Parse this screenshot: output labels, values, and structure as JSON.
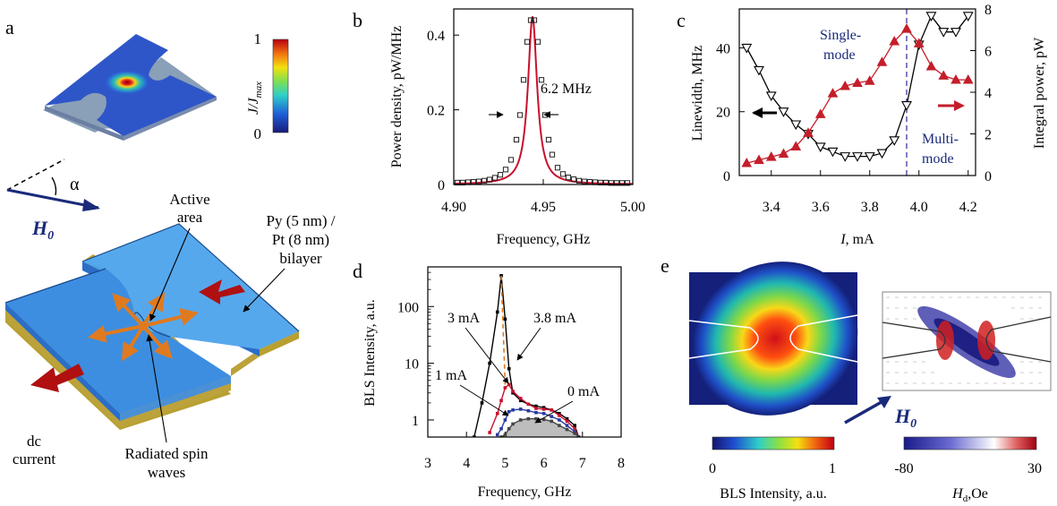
{
  "panels": {
    "a": {
      "letter": "a",
      "colorbar_label": "J/J",
      "colorbar_sub": "max",
      "colorbar_max": "1",
      "colorbar_min": "0",
      "alpha": "α",
      "field_label": "H",
      "field_sub": "0",
      "active_area_1": "Active",
      "active_area_2": "area",
      "py_1": "Py (5 nm) /",
      "py_2": "Pt (8 nm)",
      "py_3": "bilayer",
      "dc_1": "dc",
      "dc_2": "current",
      "rad_1": "Radiated spin",
      "rad_2": "waves"
    },
    "b": {
      "letter": "b",
      "ylabel": "Power density, pW/MHz",
      "xlabel": "Frequency, GHz",
      "annotation": "6.2 MHz"
    },
    "c": {
      "letter": "c",
      "ylabel_left": "Linewidth, MHz",
      "ylabel_right": "Integral power, pW",
      "xlabel_i": "I",
      "xlabel_unit": ", mA",
      "single_1": "Single-",
      "single_2": "mode",
      "multi_1": "Multi-",
      "multi_2": "mode"
    },
    "d": {
      "letter": "d",
      "ylabel": "BLS Intensity, a.u.",
      "xlabel": "Frequency, GHz",
      "label_3ma": "3 mA",
      "label_38ma": "3.8 mA",
      "label_1ma": "1 mA",
      "label_0ma": "0 mA"
    },
    "e": {
      "letter": "e",
      "field_label": "H",
      "field_sub": "0",
      "bls_cb_min": "0",
      "bls_cb_max": "1",
      "bls_cb_label": "BLS Intensity, a.u.",
      "hd_cb_min": "-80",
      "hd_cb_max": "30",
      "hd_label": "H",
      "hd_sub": "d",
      "hd_unit": ",Oe"
    }
  },
  "chart_data": [
    {
      "panel": "b",
      "type": "line",
      "xlabel": "Frequency, GHz",
      "ylabel": "Power density, pW/MHz",
      "xlim": [
        4.9,
        5.0
      ],
      "ylim": [
        0,
        0.47
      ],
      "xticks": [
        "4.90",
        "4.95",
        "5.00"
      ],
      "yticks": [
        "0",
        "0.2",
        "0.4"
      ],
      "center_ghz": 4.944,
      "fwhm_mhz": 6.2,
      "peak": 0.45,
      "x": [
        4.902,
        4.905,
        4.908,
        4.911,
        4.914,
        4.917,
        4.92,
        4.923,
        4.926,
        4.929,
        4.932,
        4.935,
        4.937,
        4.939,
        4.941,
        4.943,
        4.945,
        4.947,
        4.949,
        4.951,
        4.953,
        4.955,
        4.958,
        4.961,
        4.964,
        4.967,
        4.97,
        4.973,
        4.976,
        4.979,
        4.982,
        4.985,
        4.988,
        4.991,
        4.994,
        4.997
      ],
      "values": [
        0.005,
        0.005,
        0.006,
        0.007,
        0.008,
        0.01,
        0.013,
        0.018,
        0.026,
        0.04,
        0.066,
        0.12,
        0.186,
        0.28,
        0.382,
        0.44,
        0.44,
        0.382,
        0.28,
        0.186,
        0.12,
        0.08,
        0.045,
        0.028,
        0.019,
        0.014,
        0.01,
        0.008,
        0.007,
        0.006,
        0.005,
        0.005,
        0.004,
        0.004,
        0.004,
        0.004
      ]
    },
    {
      "panel": "c",
      "type": "line",
      "xlabel": "I, mA",
      "xlim": [
        3.27,
        4.23
      ],
      "xticks": [
        "3.4",
        "3.6",
        "3.8",
        "4.0",
        "4.2"
      ],
      "yleft_ticks": [
        "0",
        "20",
        "40"
      ],
      "yright_ticks": [
        "0",
        "2",
        "4",
        "6",
        "8"
      ],
      "series": [
        {
          "axis": "left",
          "ylim": [
            0,
            52.2
          ],
          "x": [
            3.3,
            3.35,
            3.4,
            3.45,
            3.5,
            3.55,
            3.6,
            3.65,
            3.7,
            3.75,
            3.8,
            3.85,
            3.9,
            3.95,
            4.0,
            4.05,
            4.1,
            4.15,
            4.2
          ],
          "values": [
            40,
            33,
            25,
            20,
            16,
            13,
            9,
            7.5,
            6,
            6,
            6,
            7,
            11,
            22,
            41,
            50,
            45,
            45,
            50
          ]
        },
        {
          "axis": "right",
          "ylim": [
            0,
            8
          ],
          "x": [
            3.3,
            3.35,
            3.4,
            3.45,
            3.5,
            3.55,
            3.6,
            3.65,
            3.7,
            3.75,
            3.8,
            3.85,
            3.9,
            3.95,
            4.0,
            4.05,
            4.1,
            4.15,
            4.2
          ],
          "values": [
            0.6,
            0.75,
            0.9,
            1.05,
            1.4,
            2.05,
            2.95,
            3.95,
            4.3,
            4.45,
            4.55,
            5.45,
            6.45,
            7.05,
            6.35,
            5.25,
            4.8,
            4.6,
            4.6
          ]
        }
      ],
      "threshold_x": 3.95
    },
    {
      "panel": "d",
      "type": "line",
      "xlabel": "Frequency, GHz",
      "ylabel": "BLS Intensity, a.u.",
      "xlim": [
        3,
        8
      ],
      "ylim_log": [
        0.5,
        500
      ],
      "xticks": [
        "3",
        "4",
        "5",
        "6",
        "7",
        "8"
      ],
      "yticks": [
        "1",
        "10",
        "100"
      ],
      "x": [
        4.2,
        4.4,
        4.6,
        4.8,
        4.9,
        5.0,
        5.1,
        5.2,
        5.4,
        5.6,
        5.8,
        6.0,
        6.2,
        6.4,
        6.6,
        6.8,
        6.9
      ],
      "series": [
        {
          "name": "3.8 mA",
          "values": [
            0.5,
            2,
            10,
            80,
            350,
            60,
            8,
            3,
            2.2,
            1.9,
            1.75,
            1.65,
            1.5,
            1.3,
            1.05,
            0.8,
            0.5
          ]
        },
        {
          "name": "3 mA",
          "values": [
            null,
            null,
            0.6,
            1.3,
            2.2,
            3.7,
            4.2,
            3.2,
            2.4,
            1.9,
            1.6,
            1.55,
            1.5,
            1.2,
            0.95,
            0.7,
            0.5
          ]
        },
        {
          "name": "1 mA",
          "values": [
            null,
            null,
            null,
            0.55,
            0.7,
            1.0,
            1.4,
            1.5,
            1.55,
            1.45,
            1.35,
            1.3,
            1.15,
            1.0,
            0.8,
            0.62,
            0.5
          ]
        },
        {
          "name": "0 mA",
          "values": [
            null,
            null,
            null,
            null,
            0.5,
            0.55,
            0.7,
            0.85,
            1.0,
            1.05,
            1.05,
            1.02,
            0.95,
            0.8,
            0.68,
            0.58,
            0.5
          ]
        }
      ]
    }
  ],
  "colors": {
    "red": "#c8102e",
    "triangle_red": "#c41e2a",
    "navy": "#1a2a7a",
    "blue_panel": "#3a8fd8",
    "orange": "#e07a1f",
    "dashed_blue": "#3a3aa0"
  }
}
